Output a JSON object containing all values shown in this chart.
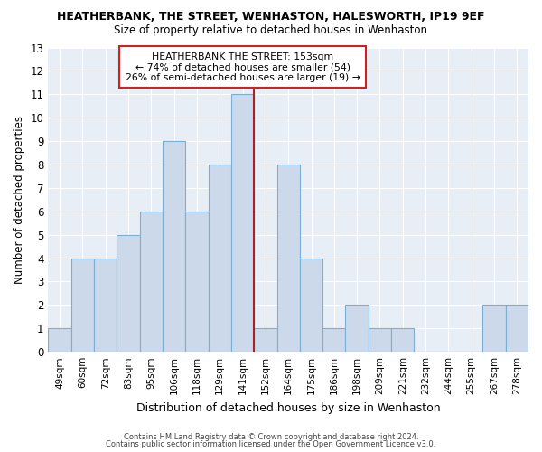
{
  "title": "HEATHERBANK, THE STREET, WENHASTON, HALESWORTH, IP19 9EF",
  "subtitle": "Size of property relative to detached houses in Wenhaston",
  "xlabel": "Distribution of detached houses by size in Wenhaston",
  "ylabel": "Number of detached properties",
  "categories": [
    "49sqm",
    "60sqm",
    "72sqm",
    "83sqm",
    "95sqm",
    "106sqm",
    "118sqm",
    "129sqm",
    "141sqm",
    "152sqm",
    "164sqm",
    "175sqm",
    "186sqm",
    "198sqm",
    "209sqm",
    "221sqm",
    "232sqm",
    "244sqm",
    "255sqm",
    "267sqm",
    "278sqm"
  ],
  "values": [
    1,
    4,
    4,
    5,
    6,
    9,
    6,
    8,
    11,
    1,
    8,
    4,
    1,
    2,
    1,
    1,
    0,
    0,
    0,
    2,
    2
  ],
  "bar_color": "#ccd9ea",
  "bar_edgecolor": "#7bafd4",
  "marker_index": 9,
  "marker_color": "#aa2222",
  "annotation_title": "HEATHERBANK THE STREET: 153sqm",
  "annotation_line1": "← 74% of detached houses are smaller (54)",
  "annotation_line2": "26% of semi-detached houses are larger (19) →",
  "ylim": [
    0,
    13
  ],
  "yticks": [
    0,
    1,
    2,
    3,
    4,
    5,
    6,
    7,
    8,
    9,
    10,
    11,
    12,
    13
  ],
  "footer1": "Contains HM Land Registry data © Crown copyright and database right 2024.",
  "footer2": "Contains public sector information licensed under the Open Government Licence v3.0.",
  "background_color": "#ffffff",
  "plot_bg_color": "#e8eef6"
}
